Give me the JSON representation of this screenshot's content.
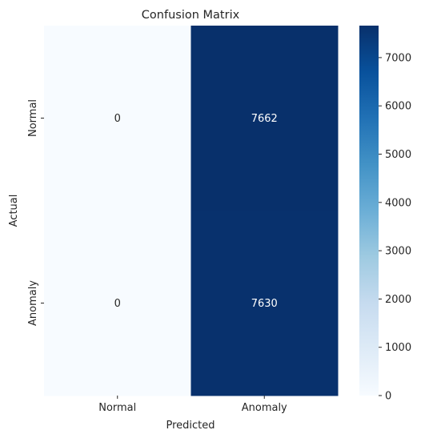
{
  "chart_data": {
    "type": "heatmap",
    "title": "Confusion Matrix",
    "xlabel": "Predicted",
    "ylabel": "Actual",
    "x_categories": [
      "Normal",
      "Anomaly"
    ],
    "y_categories": [
      "Normal",
      "Anomaly"
    ],
    "values": [
      [
        0,
        7662
      ],
      [
        0,
        7630
      ]
    ],
    "colormap": "Blues",
    "color_range": [
      0,
      7662
    ],
    "colorbar_ticks": [
      0,
      1000,
      2000,
      3000,
      4000,
      5000,
      6000,
      7000
    ],
    "colorbar_tick_labels": [
      "0",
      "1000",
      "2000",
      "3000",
      "4000",
      "5000",
      "6000",
      "7000"
    ],
    "annot_light": "#262626",
    "annot_dark": "#ffffff"
  }
}
